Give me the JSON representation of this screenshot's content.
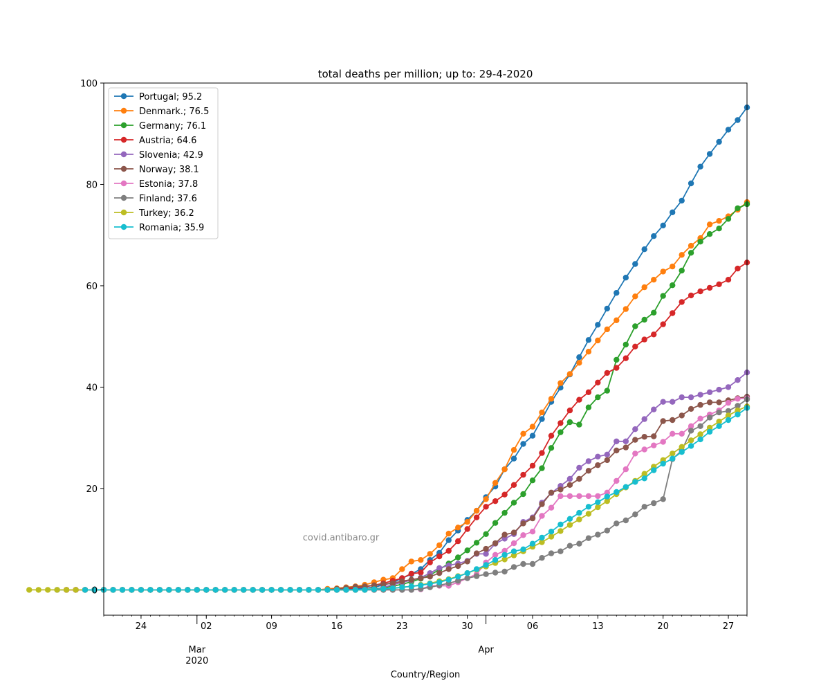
{
  "chart_data": {
    "type": "line",
    "title": "total deaths per million;  up to: 29-4-2020",
    "xlabel": "Country/Region",
    "ylabel": "",
    "watermark": "covid.antibaro.gr",
    "x_start": "2020-02-20",
    "x_end": "2020-04-29",
    "ylim": [
      -5,
      100
    ],
    "y_ticks": [
      "0",
      "20",
      "40",
      "60",
      "80",
      "100"
    ],
    "x_major_ticks": [
      {
        "date": "2020-02-24",
        "label": "24"
      },
      {
        "date": "2020-03-02",
        "label": "02"
      },
      {
        "date": "2020-03-09",
        "label": "09"
      },
      {
        "date": "2020-03-16",
        "label": "16"
      },
      {
        "date": "2020-03-23",
        "label": "23"
      },
      {
        "date": "2020-03-30",
        "label": "30"
      },
      {
        "date": "2020-04-06",
        "label": "06"
      },
      {
        "date": "2020-04-13",
        "label": "13"
      },
      {
        "date": "2020-04-20",
        "label": "20"
      },
      {
        "date": "2020-04-27",
        "label": "27"
      }
    ],
    "x_month_labels": [
      {
        "date": "2020-03-01",
        "label": "Mar",
        "sublabel": "2020"
      },
      {
        "date": "2020-04-01",
        "label": "Apr",
        "sublabel": ""
      }
    ],
    "grid": false,
    "legend": "top-left",
    "series": [
      {
        "name": "Portugal; 95.2",
        "color": "#1f77b4",
        "values": [
          0,
          0,
          0,
          0,
          0,
          0,
          0,
          0,
          0,
          0,
          0,
          0,
          0,
          0,
          0,
          0,
          0,
          0,
          0,
          0,
          0,
          0,
          0,
          0,
          0,
          0,
          0,
          0,
          0,
          0,
          0,
          0,
          0.2,
          0.3,
          0.5,
          1,
          1.4,
          2.3,
          3.1,
          4.1,
          5.9,
          7.3,
          9.8,
          11.7,
          13.8,
          15.6,
          18.3,
          20.4,
          23.8,
          25.9,
          28.8,
          30.4,
          33.7,
          37.1,
          39.9,
          42.5,
          45.9,
          49.3,
          52.3,
          55.5,
          58.6,
          61.6,
          64.3,
          67.2,
          69.8,
          71.9,
          74.5,
          76.8,
          80.2,
          83.5,
          86,
          88.4,
          90.8,
          92.7,
          95.2
        ]
      },
      {
        "name": "Denmark.; 76.5",
        "color": "#ff7f0e",
        "values": [
          0,
          0,
          0,
          0,
          0,
          0,
          0,
          0,
          0,
          0,
          0,
          0,
          0,
          0,
          0,
          0,
          0,
          0,
          0,
          0,
          0,
          0,
          0,
          0,
          0,
          0,
          0,
          0,
          0.2,
          0.3,
          0.5,
          0.7,
          1,
          1.5,
          2,
          2.3,
          4.1,
          5.6,
          5.9,
          7.1,
          8.8,
          11.1,
          12.3,
          13.4,
          15.6,
          17.9,
          21.1,
          23.8,
          27.6,
          30.8,
          32.2,
          35,
          37.7,
          40.8,
          42.6,
          44.8,
          47,
          49.2,
          51.4,
          53.2,
          55.4,
          57.9,
          59.7,
          61.2,
          62.8,
          63.8,
          66.1,
          67.9,
          69.4,
          72.1,
          72.8,
          73.7,
          75,
          76.5
        ]
      },
      {
        "name": "Germany; 76.1",
        "color": "#2ca02c",
        "values": [
          0,
          0,
          0,
          0,
          0,
          0,
          0,
          0,
          0,
          0,
          0,
          0,
          0,
          0,
          0,
          0,
          0,
          0,
          0,
          0,
          0,
          0,
          0,
          0,
          0,
          0,
          0,
          0,
          0,
          0,
          0.2,
          0.4,
          0.7,
          1.1,
          1.6,
          2.2,
          2.9,
          4,
          5.2,
          6.4,
          7.8,
          9.3,
          11,
          13.2,
          15.2,
          17.2,
          18.9,
          21.6,
          24,
          28,
          31.1,
          33.1,
          32.6,
          36,
          38,
          39.3,
          45.4,
          48.4,
          52,
          53.3,
          54.7,
          58,
          60.1,
          63,
          66.5,
          68.7,
          70.2,
          71.3,
          73.2,
          75.3,
          76.1
        ]
      },
      {
        "name": "Austria; 64.6",
        "color": "#d62728",
        "values": [
          0,
          0,
          0,
          0,
          0,
          0,
          0,
          0,
          0,
          0,
          0,
          0,
          0,
          0,
          0,
          0,
          0,
          0,
          0,
          0,
          0,
          0,
          0,
          0,
          0,
          0,
          0,
          0,
          0,
          0,
          0.2,
          0.4,
          0.6,
          0.9,
          1.3,
          1.8,
          2.3,
          3.2,
          3.4,
          5.4,
          6.6,
          7.7,
          9.6,
          12,
          14.3,
          16.4,
          17.5,
          18.8,
          20.7,
          22.7,
          24.5,
          27,
          30.4,
          32.9,
          35.4,
          37.5,
          39,
          40.9,
          42.8,
          43.8,
          45.7,
          48,
          49.4,
          50.4,
          52.4,
          54.6,
          56.8,
          58.1,
          58.9,
          59.6,
          60.3,
          61.2,
          63.4,
          64.6
        ]
      },
      {
        "name": "Slovenia; 42.9",
        "color": "#9467bd",
        "values": [
          0,
          0,
          0,
          0,
          0,
          0,
          0,
          0,
          0,
          0,
          0,
          0,
          0,
          0,
          0,
          0,
          0,
          0,
          0,
          0,
          0,
          0,
          0,
          0,
          0,
          0,
          0,
          0,
          0,
          0,
          0,
          0,
          0,
          0.5,
          1,
          1.5,
          1.9,
          2.4,
          3.3,
          4.3,
          4.8,
          5.2,
          5.7,
          7.1,
          7.1,
          9.1,
          10.1,
          11,
          13.4,
          14.3,
          17.2,
          19.1,
          20.5,
          21.9,
          24.1,
          25.4,
          26.3,
          26.7,
          29.3,
          29.3,
          31.7,
          33.7,
          35.6,
          37.1,
          37.1,
          38,
          38,
          38.5,
          39,
          39.5,
          40,
          41.4,
          42.9
        ]
      },
      {
        "name": "Norway; 38.1",
        "color": "#8c564b",
        "values": [
          0,
          0,
          0,
          0,
          0,
          0,
          0,
          0,
          0,
          0,
          0,
          0,
          0,
          0,
          0,
          0,
          0,
          0,
          0,
          0,
          0,
          0,
          0,
          0,
          0,
          0,
          0,
          0.2,
          0.4,
          0.6,
          0.7,
          0.9,
          1.1,
          1.3,
          1.7,
          2,
          2.3,
          2.6,
          3.3,
          4.1,
          4.7,
          5.6,
          7.2,
          8.1,
          9.2,
          10.9,
          11.3,
          13.1,
          14.1,
          16.9,
          19.2,
          19.8,
          20.7,
          21.9,
          23.5,
          24.6,
          25.6,
          27.5,
          28.1,
          29.6,
          30.2,
          30.3,
          33.3,
          33.5,
          34.4,
          35.7,
          36.5,
          37,
          37,
          37.4,
          37.8,
          38.1
        ]
      },
      {
        "name": "Estonia; 37.8",
        "color": "#e377c2",
        "values": [
          0,
          0,
          0,
          0,
          0,
          0,
          0,
          0,
          0,
          0,
          0,
          0,
          0,
          0,
          0,
          0,
          0,
          0,
          0,
          0,
          0,
          0,
          0,
          0,
          0,
          0,
          0,
          0,
          0,
          0,
          0,
          0,
          0,
          0,
          0,
          0,
          0,
          0,
          0.1,
          0.8,
          0.8,
          0.8,
          1.5,
          2.3,
          3.1,
          5.4,
          6.9,
          7.7,
          9.2,
          10.8,
          11.5,
          14.6,
          16.2,
          18.5,
          18.5,
          18.5,
          18.5,
          18.5,
          19.2,
          21.5,
          23.8,
          26.9,
          27.7,
          28.5,
          29.2,
          30.8,
          30.8,
          32.3,
          33.8,
          34.6,
          35.4,
          36.9,
          37.7,
          37.8
        ]
      },
      {
        "name": "Finland; 37.6",
        "color": "#7f7f7f",
        "values": [
          0,
          0,
          0,
          0,
          0,
          0,
          0,
          0,
          0,
          0,
          0,
          0,
          0,
          0,
          0,
          0,
          0,
          0,
          0,
          0,
          0,
          0,
          0,
          0,
          0,
          0,
          0,
          0,
          0,
          0,
          0,
          0,
          0,
          0,
          0,
          0,
          0.2,
          0.5,
          0.9,
          1.3,
          1.8,
          2.3,
          2.7,
          3.1,
          3.4,
          3.6,
          4.5,
          5.1,
          5.1,
          6.3,
          7.2,
          7.6,
          8.7,
          9.1,
          10.2,
          10.9,
          11.7,
          13.1,
          13.7,
          14.9,
          16.4,
          17.1,
          17.9,
          25.8,
          27.5,
          31.4,
          32.3,
          34,
          35,
          35.3,
          36.3,
          37.6
        ]
      },
      {
        "name": "Turkey; 36.2",
        "color": "#bcbd22",
        "values": [
          0,
          0,
          0,
          0,
          0,
          0,
          0,
          0,
          0,
          0,
          0,
          0,
          0,
          0,
          0,
          0,
          0,
          0,
          0,
          0,
          0,
          0,
          0,
          0,
          0,
          0,
          0,
          0,
          0,
          0,
          0,
          0,
          0,
          0,
          0,
          0,
          0,
          0.1,
          0.2,
          0.3,
          0.5,
          0.7,
          1,
          1.3,
          1.7,
          2.1,
          2.7,
          3.3,
          4,
          4.6,
          5.3,
          6,
          6.8,
          7.6,
          8.5,
          9.4,
          10.5,
          11.6,
          12.8,
          13.9,
          15,
          16.3,
          17.5,
          18.9,
          20.2,
          21.5,
          22.9,
          24.3,
          25.6,
          26.9,
          28.2,
          29.5,
          30.7,
          32,
          33.2,
          34.4,
          35.4,
          36.2
        ]
      },
      {
        "name": "Romania; 35.9",
        "color": "#17becf",
        "values": [
          0,
          0,
          0,
          0,
          0,
          0,
          0,
          0,
          0,
          0,
          0,
          0,
          0,
          0,
          0,
          0,
          0,
          0,
          0,
          0,
          0,
          0,
          0,
          0,
          0,
          0,
          0,
          0,
          0,
          0,
          0,
          0.1,
          0.2,
          0.3,
          0.5,
          0.7,
          0.9,
          1.2,
          1.5,
          2,
          2.6,
          3.3,
          4.1,
          4.9,
          5.9,
          6.9,
          7.6,
          8,
          9.1,
          10.3,
          11.5,
          12.9,
          14,
          15.2,
          16.4,
          17.3,
          18.4,
          19.3,
          20.3,
          21.3,
          22,
          23.6,
          24.9,
          25.9,
          27.2,
          28.4,
          29.7,
          31.2,
          32.3,
          33.5,
          34.6,
          35.9
        ]
      }
    ]
  }
}
